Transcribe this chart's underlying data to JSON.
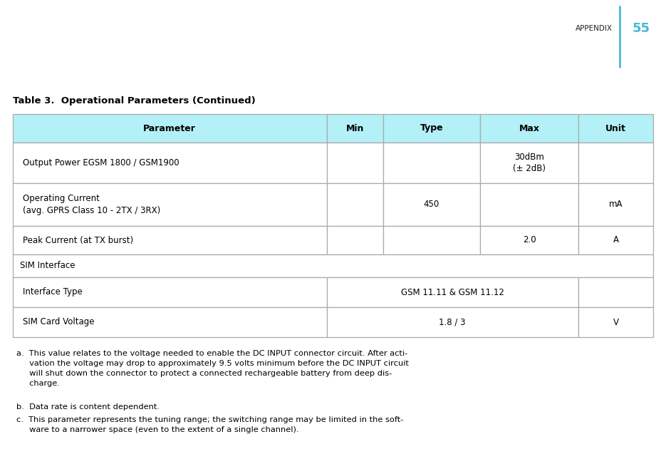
{
  "page_title": "APPENDIX",
  "page_number": "55",
  "table_title": "Table 3.  Operational Parameters (Continued)",
  "header_bg": "#b3f0f7",
  "divider_color": "#4ab8d8",
  "header_row": [
    "Parameter",
    "Min",
    "Type",
    "Max",
    "Unit"
  ],
  "bg_color": "#ffffff",
  "text_color": "#000000",
  "border_color": "#aaaaaa",
  "font_size_header": 9,
  "font_size_data": 8.5,
  "font_size_footnote": 8.2,
  "font_size_title": 9.5,
  "font_size_pagetitle": 7.5,
  "font_size_pagenum": 13,
  "footnote_a": "a.  This value relates to the voltage needed to enable the DC INPUT connector circuit. After acti-\n     vation the voltage may drop to approximately 9.5 volts minimum before the DC INPUT circuit\n     will shut down the connector to protect a connected rechargeable battery from deep dis-\n     charge.",
  "footnote_b": "b.  Data rate is content dependent.",
  "footnote_c": "c.  This parameter represents the tuning range; the switching range may be limited in the soft-\n     ware to a narrower space (even to the extent of a single channel)."
}
